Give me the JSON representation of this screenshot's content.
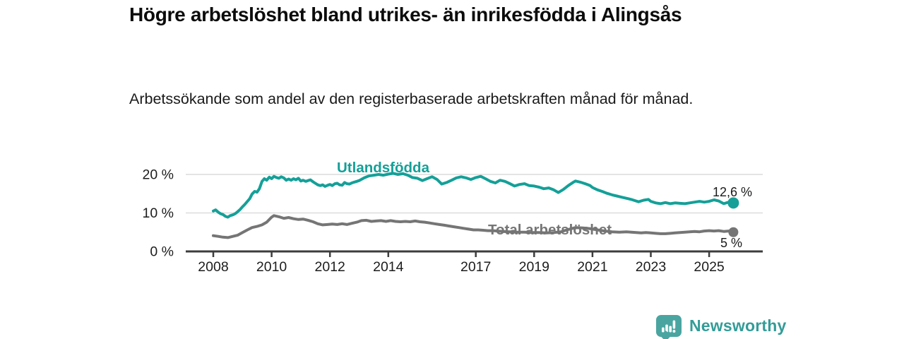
{
  "footer": {
    "brand": "Newsworthy"
  },
  "chart_data": {
    "type": "line",
    "title": "Högre arbetslöshet bland utrikes- än inrikesfödda i Alingsås",
    "subtitle": "Arbetssökande som andel av den registerbaserade arbetskraften månad för månad.",
    "unit": "%",
    "grid": true,
    "legend_position": "inline-labels",
    "xlim": [
      2007.06,
      2026.84
    ],
    "ylim": [
      0,
      22
    ],
    "y_ticks": [
      {
        "value": 0,
        "label": "0 %"
      },
      {
        "value": 10,
        "label": "10 %"
      },
      {
        "value": 20,
        "label": "20 %"
      }
    ],
    "x_ticks": [
      {
        "value": 2008,
        "label": "2008"
      },
      {
        "value": 2010,
        "label": "2010"
      },
      {
        "value": 2012,
        "label": "2012"
      },
      {
        "value": 2014,
        "label": "2014"
      },
      {
        "value": 2017,
        "label": "2017"
      },
      {
        "value": 2019,
        "label": "2019"
      },
      {
        "value": 2021,
        "label": "2021"
      },
      {
        "value": 2023,
        "label": "2023"
      },
      {
        "value": 2025,
        "label": "2025"
      }
    ],
    "series": [
      {
        "name": "Utlandsfödda",
        "color": "#14a098",
        "end_label": "12,6 %",
        "end_value": 12.6,
        "points": [
          [
            2008.0,
            10.5
          ],
          [
            2008.08,
            10.8
          ],
          [
            2008.17,
            10.2
          ],
          [
            2008.25,
            9.8
          ],
          [
            2008.33,
            9.6
          ],
          [
            2008.42,
            9.1
          ],
          [
            2008.5,
            8.9
          ],
          [
            2008.58,
            9.3
          ],
          [
            2008.67,
            9.5
          ],
          [
            2008.75,
            9.8
          ],
          [
            2008.83,
            10.3
          ],
          [
            2008.92,
            10.9
          ],
          [
            2009.0,
            11.6
          ],
          [
            2009.08,
            12.2
          ],
          [
            2009.17,
            13.0
          ],
          [
            2009.25,
            13.7
          ],
          [
            2009.33,
            14.9
          ],
          [
            2009.42,
            15.6
          ],
          [
            2009.5,
            15.4
          ],
          [
            2009.58,
            16.3
          ],
          [
            2009.67,
            18.2
          ],
          [
            2009.75,
            18.9
          ],
          [
            2009.83,
            18.5
          ],
          [
            2009.92,
            19.3
          ],
          [
            2010.0,
            18.9
          ],
          [
            2010.08,
            19.5
          ],
          [
            2010.17,
            19.2
          ],
          [
            2010.25,
            19.0
          ],
          [
            2010.33,
            19.4
          ],
          [
            2010.42,
            19.1
          ],
          [
            2010.5,
            18.5
          ],
          [
            2010.58,
            18.8
          ],
          [
            2010.67,
            18.5
          ],
          [
            2010.75,
            18.9
          ],
          [
            2010.83,
            18.6
          ],
          [
            2010.92,
            19.0
          ],
          [
            2011.0,
            18.3
          ],
          [
            2011.08,
            18.5
          ],
          [
            2011.17,
            18.2
          ],
          [
            2011.25,
            18.4
          ],
          [
            2011.33,
            18.6
          ],
          [
            2011.42,
            18.1
          ],
          [
            2011.5,
            17.7
          ],
          [
            2011.58,
            17.3
          ],
          [
            2011.67,
            17.1
          ],
          [
            2011.75,
            17.3
          ],
          [
            2011.83,
            16.9
          ],
          [
            2011.92,
            17.2
          ],
          [
            2012.0,
            17.4
          ],
          [
            2012.08,
            17.1
          ],
          [
            2012.17,
            17.6
          ],
          [
            2012.25,
            17.7
          ],
          [
            2012.33,
            17.3
          ],
          [
            2012.42,
            17.2
          ],
          [
            2012.5,
            17.9
          ],
          [
            2012.58,
            17.6
          ],
          [
            2012.67,
            17.5
          ],
          [
            2012.75,
            17.8
          ],
          [
            2012.83,
            18.0
          ],
          [
            2012.92,
            18.2
          ],
          [
            2013.0,
            18.4
          ],
          [
            2013.17,
            19.1
          ],
          [
            2013.33,
            19.6
          ],
          [
            2013.5,
            19.8
          ],
          [
            2013.67,
            20.0
          ],
          [
            2013.83,
            19.8
          ],
          [
            2014.0,
            20.1
          ],
          [
            2014.17,
            20.3
          ],
          [
            2014.33,
            20.0
          ],
          [
            2014.5,
            20.2
          ],
          [
            2014.67,
            19.8
          ],
          [
            2014.83,
            19.2
          ],
          [
            2015.0,
            19.0
          ],
          [
            2015.17,
            18.4
          ],
          [
            2015.33,
            18.9
          ],
          [
            2015.5,
            19.4
          ],
          [
            2015.67,
            18.7
          ],
          [
            2015.83,
            17.5
          ],
          [
            2016.0,
            17.9
          ],
          [
            2016.17,
            18.5
          ],
          [
            2016.33,
            19.1
          ],
          [
            2016.5,
            19.4
          ],
          [
            2016.67,
            19.1
          ],
          [
            2016.83,
            18.7
          ],
          [
            2017.0,
            19.2
          ],
          [
            2017.17,
            19.5
          ],
          [
            2017.33,
            18.9
          ],
          [
            2017.5,
            18.2
          ],
          [
            2017.67,
            17.8
          ],
          [
            2017.83,
            18.5
          ],
          [
            2018.0,
            18.2
          ],
          [
            2018.17,
            17.6
          ],
          [
            2018.33,
            17.0
          ],
          [
            2018.5,
            17.4
          ],
          [
            2018.67,
            17.6
          ],
          [
            2018.83,
            17.1
          ],
          [
            2019.0,
            17.0
          ],
          [
            2019.17,
            16.7
          ],
          [
            2019.33,
            16.3
          ],
          [
            2019.5,
            16.5
          ],
          [
            2019.67,
            16.0
          ],
          [
            2019.83,
            15.3
          ],
          [
            2020.0,
            16.1
          ],
          [
            2020.17,
            17.1
          ],
          [
            2020.33,
            17.9
          ],
          [
            2020.42,
            18.3
          ],
          [
            2020.58,
            18.0
          ],
          [
            2020.75,
            17.6
          ],
          [
            2020.92,
            17.1
          ],
          [
            2021.0,
            16.6
          ],
          [
            2021.17,
            16.0
          ],
          [
            2021.33,
            15.6
          ],
          [
            2021.5,
            15.1
          ],
          [
            2021.67,
            14.7
          ],
          [
            2021.83,
            14.4
          ],
          [
            2022.0,
            14.1
          ],
          [
            2022.17,
            13.8
          ],
          [
            2022.33,
            13.5
          ],
          [
            2022.5,
            13.1
          ],
          [
            2022.58,
            12.9
          ],
          [
            2022.75,
            13.3
          ],
          [
            2022.92,
            13.5
          ],
          [
            2023.0,
            13.0
          ],
          [
            2023.17,
            12.6
          ],
          [
            2023.33,
            12.4
          ],
          [
            2023.5,
            12.7
          ],
          [
            2023.67,
            12.4
          ],
          [
            2023.83,
            12.6
          ],
          [
            2024.0,
            12.5
          ],
          [
            2024.17,
            12.4
          ],
          [
            2024.33,
            12.6
          ],
          [
            2024.5,
            12.8
          ],
          [
            2024.67,
            13.0
          ],
          [
            2024.83,
            12.8
          ],
          [
            2025.0,
            13.0
          ],
          [
            2025.17,
            13.4
          ],
          [
            2025.33,
            13.1
          ],
          [
            2025.5,
            12.4
          ],
          [
            2025.67,
            12.8
          ],
          [
            2025.83,
            12.6
          ]
        ]
      },
      {
        "name": "Total arbetslöshet",
        "color": "#757575",
        "end_label": "5 %",
        "end_value": 5.0,
        "points": [
          [
            2008.0,
            4.1
          ],
          [
            2008.17,
            3.9
          ],
          [
            2008.33,
            3.7
          ],
          [
            2008.5,
            3.6
          ],
          [
            2008.67,
            3.9
          ],
          [
            2008.83,
            4.2
          ],
          [
            2009.0,
            4.9
          ],
          [
            2009.17,
            5.6
          ],
          [
            2009.33,
            6.2
          ],
          [
            2009.5,
            6.5
          ],
          [
            2009.67,
            6.9
          ],
          [
            2009.83,
            7.6
          ],
          [
            2010.0,
            8.9
          ],
          [
            2010.08,
            9.3
          ],
          [
            2010.25,
            9.0
          ],
          [
            2010.42,
            8.6
          ],
          [
            2010.58,
            8.8
          ],
          [
            2010.75,
            8.5
          ],
          [
            2010.92,
            8.3
          ],
          [
            2011.08,
            8.4
          ],
          [
            2011.25,
            8.1
          ],
          [
            2011.42,
            7.7
          ],
          [
            2011.58,
            7.2
          ],
          [
            2011.75,
            6.9
          ],
          [
            2011.92,
            7.0
          ],
          [
            2012.08,
            7.1
          ],
          [
            2012.25,
            7.0
          ],
          [
            2012.42,
            7.2
          ],
          [
            2012.58,
            7.0
          ],
          [
            2012.75,
            7.3
          ],
          [
            2012.92,
            7.6
          ],
          [
            2013.08,
            8.0
          ],
          [
            2013.25,
            8.1
          ],
          [
            2013.42,
            7.8
          ],
          [
            2013.58,
            7.9
          ],
          [
            2013.75,
            8.0
          ],
          [
            2013.92,
            7.8
          ],
          [
            2014.08,
            8.0
          ],
          [
            2014.25,
            7.8
          ],
          [
            2014.42,
            7.7
          ],
          [
            2014.58,
            7.8
          ],
          [
            2014.75,
            7.7
          ],
          [
            2014.92,
            7.9
          ],
          [
            2015.08,
            7.7
          ],
          [
            2015.25,
            7.6
          ],
          [
            2015.42,
            7.4
          ],
          [
            2015.58,
            7.2
          ],
          [
            2015.75,
            7.0
          ],
          [
            2015.92,
            6.8
          ],
          [
            2016.08,
            6.6
          ],
          [
            2016.25,
            6.4
          ],
          [
            2016.42,
            6.2
          ],
          [
            2016.58,
            6.0
          ],
          [
            2016.75,
            5.8
          ],
          [
            2016.92,
            5.6
          ],
          [
            2017.08,
            5.6
          ],
          [
            2017.25,
            5.5
          ],
          [
            2017.42,
            5.4
          ],
          [
            2017.58,
            5.4
          ],
          [
            2017.75,
            5.3
          ],
          [
            2017.92,
            5.2
          ],
          [
            2018.17,
            5.1
          ],
          [
            2018.42,
            5.0
          ],
          [
            2018.67,
            5.0
          ],
          [
            2018.92,
            4.9
          ],
          [
            2019.17,
            4.9
          ],
          [
            2019.42,
            4.8
          ],
          [
            2019.67,
            4.9
          ],
          [
            2019.92,
            5.1
          ],
          [
            2020.17,
            5.7
          ],
          [
            2020.42,
            6.2
          ],
          [
            2020.67,
            6.1
          ],
          [
            2020.92,
            5.9
          ],
          [
            2021.17,
            5.6
          ],
          [
            2021.42,
            5.3
          ],
          [
            2021.67,
            5.1
          ],
          [
            2021.92,
            5.0
          ],
          [
            2022.17,
            5.1
          ],
          [
            2022.33,
            5.0
          ],
          [
            2022.5,
            4.9
          ],
          [
            2022.67,
            4.8
          ],
          [
            2022.83,
            4.9
          ],
          [
            2023.0,
            4.8
          ],
          [
            2023.17,
            4.7
          ],
          [
            2023.33,
            4.6
          ],
          [
            2023.5,
            4.6
          ],
          [
            2023.67,
            4.7
          ],
          [
            2023.83,
            4.8
          ],
          [
            2024.0,
            4.9
          ],
          [
            2024.17,
            5.0
          ],
          [
            2024.33,
            5.1
          ],
          [
            2024.5,
            5.2
          ],
          [
            2024.67,
            5.1
          ],
          [
            2024.83,
            5.3
          ],
          [
            2025.0,
            5.4
          ],
          [
            2025.17,
            5.3
          ],
          [
            2025.33,
            5.4
          ],
          [
            2025.5,
            5.2
          ],
          [
            2025.67,
            5.3
          ],
          [
            2025.83,
            5.0
          ]
        ]
      }
    ],
    "colors": {
      "grid": "#dcdcdc",
      "axis": "#3d3d3d",
      "tick_text": "#1c1c1c",
      "brand_teal": "#4aa5a1"
    }
  }
}
